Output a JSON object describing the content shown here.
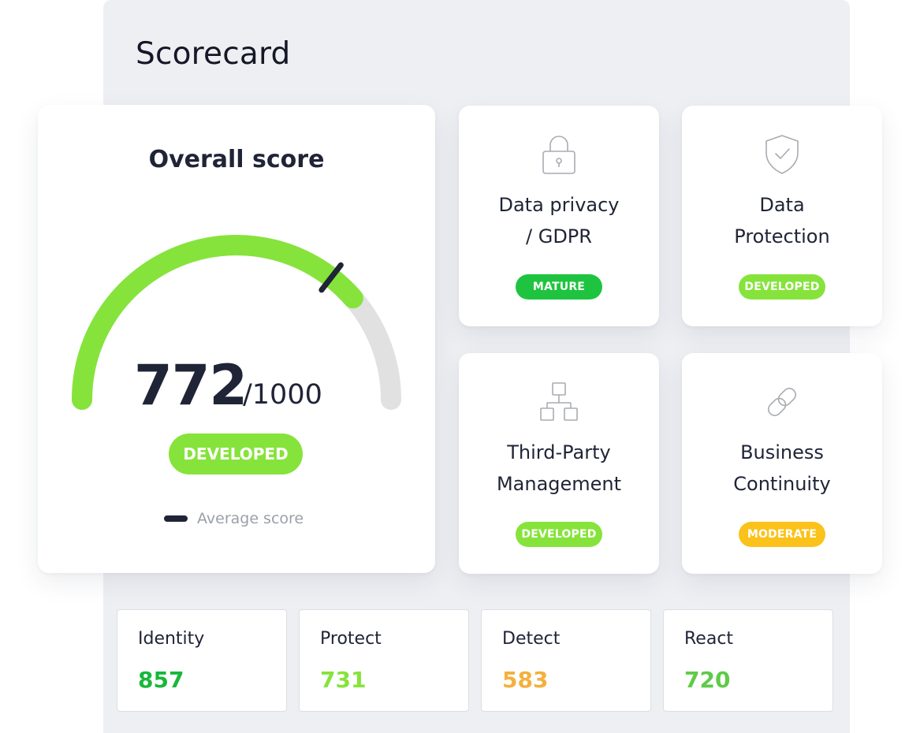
{
  "panel": {
    "title": "Scorecard"
  },
  "overall": {
    "title": "Overall score",
    "score": "772",
    "max": "/1000",
    "score_value": 772,
    "score_max": 1000,
    "average_fraction": 0.71,
    "status": "DEVELOPED",
    "legend_label": "Average score",
    "colors": {
      "fill": "#86e33b",
      "track": "#e1e1e1",
      "marker": "#1f2436"
    }
  },
  "categories": [
    {
      "label": "Data privacy / GDPR",
      "icon": "lock-icon",
      "status": "MATURE",
      "status_color": "#1ec43f"
    },
    {
      "label": "Data Protection",
      "icon": "shield-check-icon",
      "status": "DEVELOPED",
      "status_color": "#86e33b"
    },
    {
      "label": "Third-Party Management",
      "icon": "org-chart-icon",
      "status": "DEVELOPED",
      "status_color": "#86e33b"
    },
    {
      "label": "Business Continuity",
      "icon": "chain-link-icon",
      "status": "MODERATE",
      "status_color": "#fbc21b"
    }
  ],
  "metrics": [
    {
      "label": "Identity",
      "value": "857",
      "color": "#18b83a"
    },
    {
      "label": "Protect",
      "value": "731",
      "color": "#86e33b"
    },
    {
      "label": "Detect",
      "value": "583",
      "color": "#f4b03e"
    },
    {
      "label": "React",
      "value": "720",
      "color": "#5fcb48"
    }
  ]
}
